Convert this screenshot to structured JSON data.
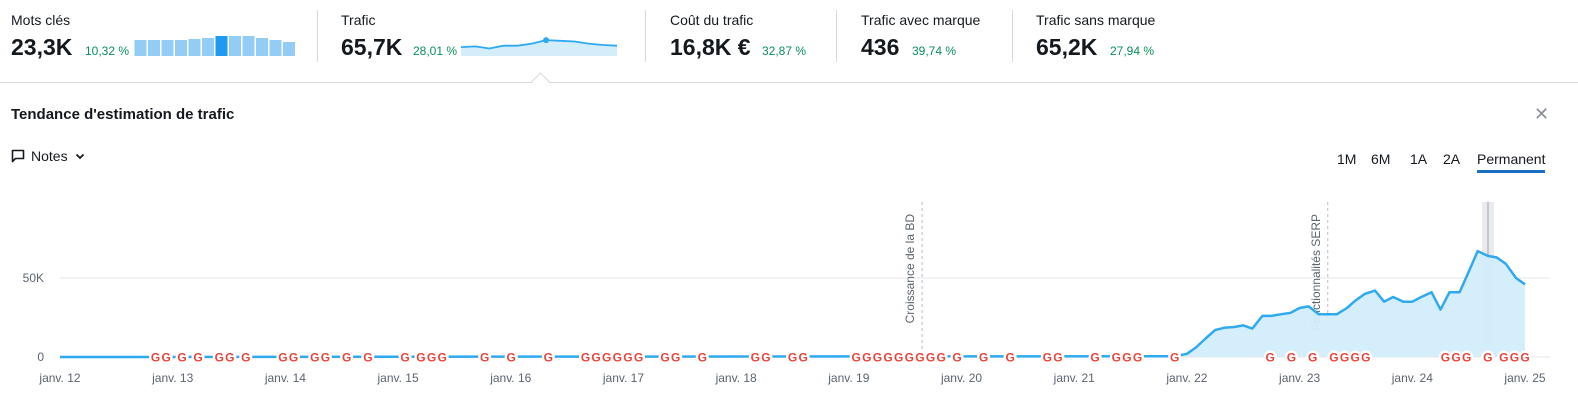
{
  "metrics": [
    {
      "label": "Mots clés",
      "value": "23,3K",
      "change": "10,32 %"
    },
    {
      "label": "Trafic",
      "value": "65,7K",
      "change": "28,01 %"
    },
    {
      "label": "Coût du trafic",
      "value": "16,8K €",
      "change": "32,87 %"
    },
    {
      "label": "Trafic avec marque",
      "value": "436",
      "change": "39,74 %"
    },
    {
      "label": "Trafic sans marque",
      "value": "65,2K",
      "change": "27,94 %"
    }
  ],
  "keyword_bars": [
    0.8,
    0.8,
    0.8,
    0.8,
    0.85,
    0.9,
    1.0,
    1.0,
    1.0,
    0.9,
    0.8,
    0.7
  ],
  "keyword_bars_highlight": 6,
  "traffic_spark": [
    0.35,
    0.4,
    0.25,
    0.45,
    0.45,
    0.6,
    0.85,
    0.8,
    0.75,
    0.6,
    0.5,
    0.45
  ],
  "traffic_spark_marker": 6,
  "panel": {
    "title": "Tendance d'estimation de trafic",
    "notes_label": "Notes",
    "ranges": [
      "1M",
      "6M",
      "1A",
      "2A",
      "Permanent"
    ],
    "active_range": "Permanent"
  },
  "colors": {
    "line": "#2fa9ef",
    "area": "#d3edfb",
    "positive": "#0a8f5c",
    "accent": "#1a6fc4",
    "bar": "#93cdf5",
    "bar_highlight": "#1e9af0"
  },
  "icons": {
    "notes": "chat-bubble-icon",
    "dropdown": "chevron-down-icon",
    "close": "close-icon",
    "google": "google-g-icon"
  },
  "chart_data": {
    "type": "area",
    "x_labels": [
      "janv. 12",
      "janv. 13",
      "janv. 14",
      "janv. 15",
      "janv. 16",
      "janv. 17",
      "janv. 18",
      "janv. 19",
      "janv. 20",
      "janv. 21",
      "janv. 22",
      "janv. 23",
      "janv. 24",
      "janv. 25"
    ],
    "y_ticks": [
      {
        "value": 0,
        "label": "0"
      },
      {
        "value": 50000,
        "label": "50K"
      }
    ],
    "ylim": [
      0,
      100000
    ],
    "xlim": [
      2012.0,
      2025.0
    ],
    "grid": true,
    "series": [
      {
        "x": [
          2012.0,
          2021.9,
          2022.0,
          2022.08,
          2022.17,
          2022.25,
          2022.33,
          2022.42,
          2022.5,
          2022.58,
          2022.67,
          2022.75,
          2022.83,
          2022.92,
          2023.0,
          2023.08,
          2023.17,
          2023.25,
          2023.33,
          2023.42,
          2023.5,
          2023.58,
          2023.67,
          2023.75,
          2023.83,
          2023.92,
          2024.0,
          2024.08,
          2024.17,
          2024.25,
          2024.33,
          2024.42,
          2024.5,
          2024.58,
          2024.67,
          2024.75,
          2024.83,
          2024.92,
          2025.0
        ],
        "y": [
          0,
          500,
          2000,
          6000,
          12000,
          17000,
          18500,
          19000,
          20000,
          18000,
          26000,
          26000,
          27000,
          28000,
          31000,
          32000,
          27000,
          27000,
          27000,
          31000,
          36000,
          40000,
          42000,
          35000,
          38000,
          35000,
          35000,
          38000,
          41000,
          30000,
          41000,
          41000,
          54000,
          67000,
          64000,
          63000,
          59000,
          50000,
          46000
        ]
      }
    ],
    "annotations": [
      {
        "x": 2019.65,
        "label": "Croissance de la BD"
      },
      {
        "x": 2023.25,
        "label": "Fonctionnalités SERP"
      }
    ],
    "google_update_markers": [
      2012.9,
      2013.0,
      2013.15,
      2013.3,
      2013.5,
      2013.6,
      2013.75,
      2014.1,
      2014.2,
      2014.4,
      2014.5,
      2014.7,
      2014.9,
      2015.25,
      2015.4,
      2015.5,
      2015.6,
      2016.0,
      2016.25,
      2016.6,
      2016.95,
      2017.05,
      2017.15,
      2017.25,
      2017.35,
      2017.45,
      2017.7,
      2017.8,
      2018.05,
      2018.55,
      2018.65,
      2018.9,
      2019.0,
      2019.5,
      2019.6,
      2019.7,
      2019.8,
      2019.9,
      2020.0,
      2020.1,
      2020.2,
      2020.3,
      2020.45,
      2020.7,
      2020.95,
      2021.3,
      2021.4,
      2021.75,
      2021.95,
      2022.05,
      2022.15,
      2022.5,
      2023.4,
      2023.6,
      2023.8,
      2024.0,
      2024.1,
      2024.2,
      2024.3,
      2025.05,
      2025.15,
      2025.25,
      2025.45,
      2025.6,
      2025.7,
      2025.8
    ]
  }
}
